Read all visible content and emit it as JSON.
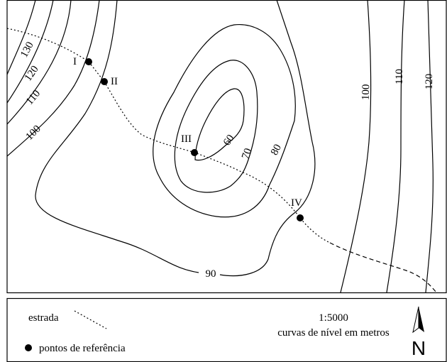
{
  "map": {
    "contour_labels": [
      130,
      120,
      110,
      100,
      90,
      80,
      70,
      60,
      100,
      110,
      120
    ],
    "points": [
      "I",
      "II",
      "III",
      "IV"
    ]
  },
  "legend": {
    "road": "estrada",
    "points": "pontos de referência",
    "scale": "1:5000",
    "contour_note": "curvas de nível em metros",
    "north": "N"
  }
}
